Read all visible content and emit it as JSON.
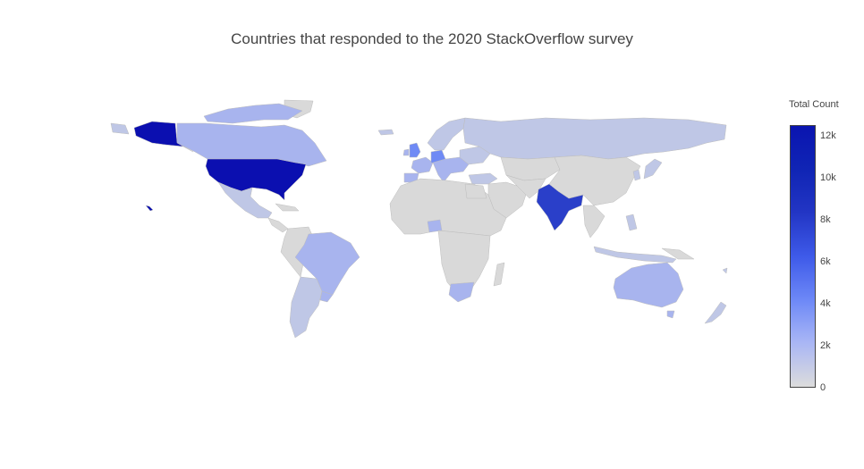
{
  "title": "Countries that responded to the 2020 StackOverflow survey",
  "colorbar": {
    "title": "Total Count",
    "ticks": [
      "0",
      "2k",
      "4k",
      "6k",
      "8k",
      "10k",
      "12k"
    ]
  },
  "colors": {
    "land_default": "#d9d9d9",
    "border": "#bdbdbd",
    "very_low": "#bfc7e6",
    "low": "#a8b4ee",
    "mid": "#6f8af5",
    "high": "#2a3fc9",
    "max": "#0b0fb0"
  },
  "chart_data": {
    "type": "choropleth",
    "value_range": [
      0,
      12500
    ],
    "countries": [
      {
        "name": "United States",
        "value": 12400
      },
      {
        "name": "India",
        "value": 8400
      },
      {
        "name": "United Kingdom",
        "value": 3900
      },
      {
        "name": "Germany",
        "value": 4800
      },
      {
        "name": "Canada",
        "value": 2200
      },
      {
        "name": "Brazil",
        "value": 1900
      },
      {
        "name": "France",
        "value": 2100
      },
      {
        "name": "Australia",
        "value": 1900
      },
      {
        "name": "Russia",
        "value": 1100
      },
      {
        "name": "Poland",
        "value": 1500
      },
      {
        "name": "Netherlands",
        "value": 1300
      },
      {
        "name": "Spain",
        "value": 1300
      },
      {
        "name": "Italy",
        "value": 1300
      },
      {
        "name": "Sweden",
        "value": 1100
      },
      {
        "name": "Ukraine",
        "value": 900
      },
      {
        "name": "Turkey",
        "value": 900
      },
      {
        "name": "Mexico",
        "value": 700
      },
      {
        "name": "South Africa",
        "value": 600
      },
      {
        "name": "Argentina",
        "value": 500
      },
      {
        "name": "China",
        "value": 300
      },
      {
        "name": "Japan",
        "value": 400
      }
    ]
  }
}
